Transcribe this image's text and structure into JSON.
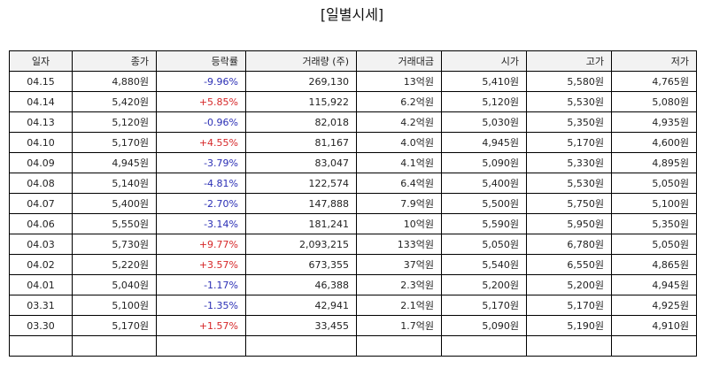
{
  "title": "[일별시세]",
  "colors": {
    "up": "#d62728",
    "down": "#2b2fb5",
    "border": "#000000",
    "header_bg": "#f2f2f2"
  },
  "columns": [
    "일자",
    "종가",
    "등락률",
    "거래량 (주)",
    "거래대금",
    "시가",
    "고가",
    "저가"
  ],
  "rows": [
    {
      "date": "04.15",
      "close": "4,880원",
      "change": "-9.96%",
      "dir": "down",
      "volume": "269,130",
      "amount": "13억원",
      "open": "5,410원",
      "high": "5,580원",
      "low": "4,765원"
    },
    {
      "date": "04.14",
      "close": "5,420원",
      "change": "+5.85%",
      "dir": "up",
      "volume": "115,922",
      "amount": "6.2억원",
      "open": "5,120원",
      "high": "5,530원",
      "low": "5,080원"
    },
    {
      "date": "04.13",
      "close": "5,120원",
      "change": "-0.96%",
      "dir": "down",
      "volume": "82,018",
      "amount": "4.2억원",
      "open": "5,030원",
      "high": "5,350원",
      "low": "4,935원"
    },
    {
      "date": "04.10",
      "close": "5,170원",
      "change": "+4.55%",
      "dir": "up",
      "volume": "81,167",
      "amount": "4.0억원",
      "open": "4,945원",
      "high": "5,170원",
      "low": "4,600원"
    },
    {
      "date": "04.09",
      "close": "4,945원",
      "change": "-3.79%",
      "dir": "down",
      "volume": "83,047",
      "amount": "4.1억원",
      "open": "5,090원",
      "high": "5,330원",
      "low": "4,895원"
    },
    {
      "date": "04.08",
      "close": "5,140원",
      "change": "-4.81%",
      "dir": "down",
      "volume": "122,574",
      "amount": "6.4억원",
      "open": "5,400원",
      "high": "5,530원",
      "low": "5,050원"
    },
    {
      "date": "04.07",
      "close": "5,400원",
      "change": "-2.70%",
      "dir": "down",
      "volume": "147,888",
      "amount": "7.9억원",
      "open": "5,500원",
      "high": "5,750원",
      "low": "5,100원"
    },
    {
      "date": "04.06",
      "close": "5,550원",
      "change": "-3.14%",
      "dir": "down",
      "volume": "181,241",
      "amount": "10억원",
      "open": "5,590원",
      "high": "5,950원",
      "low": "5,350원"
    },
    {
      "date": "04.03",
      "close": "5,730원",
      "change": "+9.77%",
      "dir": "up",
      "volume": "2,093,215",
      "amount": "133억원",
      "open": "5,050원",
      "high": "6,780원",
      "low": "5,050원"
    },
    {
      "date": "04.02",
      "close": "5,220원",
      "change": "+3.57%",
      "dir": "up",
      "volume": "673,355",
      "amount": "37억원",
      "open": "5,540원",
      "high": "6,550원",
      "low": "4,865원"
    },
    {
      "date": "04.01",
      "close": "5,040원",
      "change": "-1.17%",
      "dir": "down",
      "volume": "46,388",
      "amount": "2.3억원",
      "open": "5,200원",
      "high": "5,200원",
      "low": "4,945원"
    },
    {
      "date": "03.31",
      "close": "5,100원",
      "change": "-1.35%",
      "dir": "down",
      "volume": "42,941",
      "amount": "2.1억원",
      "open": "5,170원",
      "high": "5,170원",
      "low": "4,925원"
    },
    {
      "date": "03.30",
      "close": "5,170원",
      "change": "+1.57%",
      "dir": "up",
      "volume": "33,455",
      "amount": "1.7억원",
      "open": "5,090원",
      "high": "5,190원",
      "low": "4,910원"
    },
    {
      "date": "",
      "close": "",
      "change": "",
      "dir": "",
      "volume": "",
      "amount": "",
      "open": "",
      "high": "",
      "low": ""
    }
  ]
}
